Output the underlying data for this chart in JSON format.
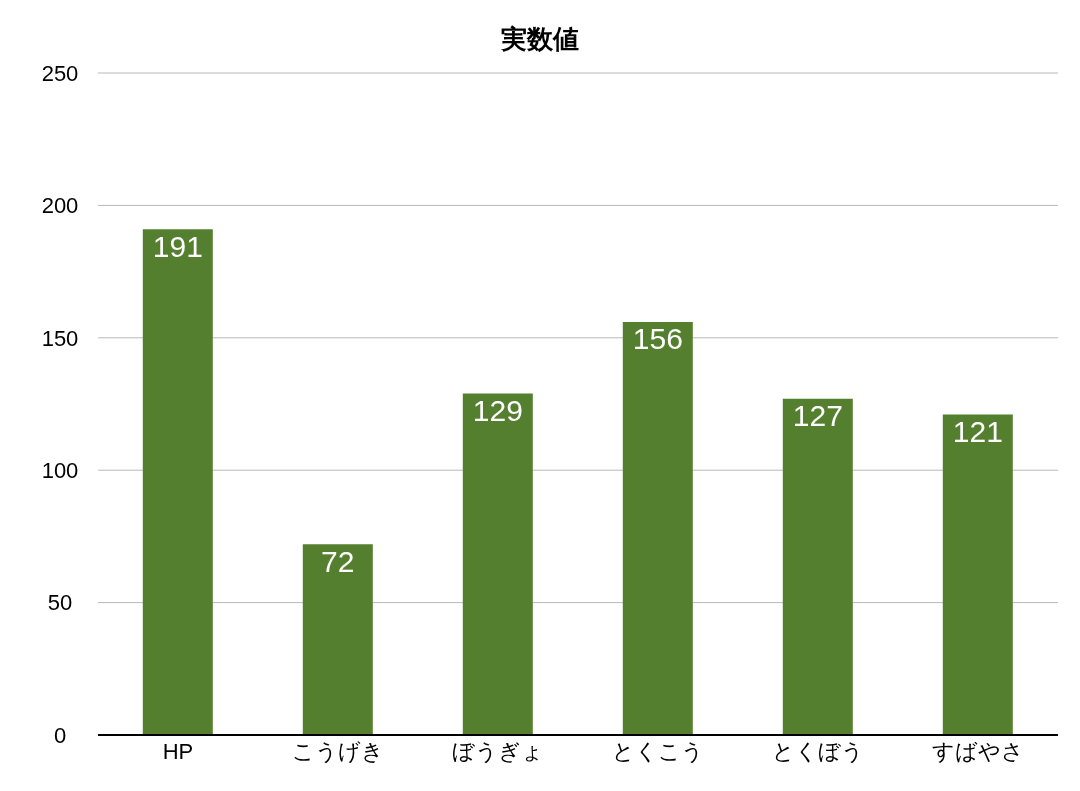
{
  "chart_data": {
    "type": "bar",
    "title": "実数値",
    "categories": [
      "HP",
      "こうげき",
      "ぼうぎょ",
      "とくこう",
      "とくぼう",
      "すばやさ"
    ],
    "values": [
      191,
      72,
      129,
      156,
      127,
      121
    ],
    "color": "#537f2e",
    "ylim": [
      0,
      250
    ],
    "yticks": [
      0,
      50,
      100,
      150,
      200,
      250
    ],
    "grid": "y",
    "data_labels": true
  }
}
